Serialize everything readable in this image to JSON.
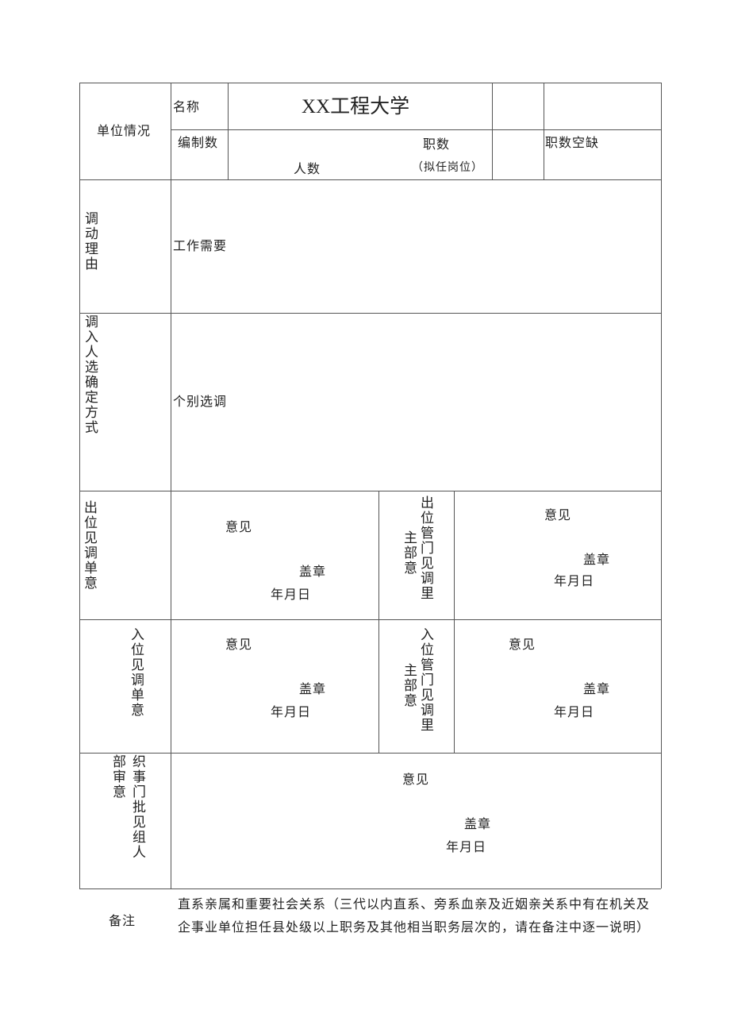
{
  "unit_info": {
    "label": "单位情况",
    "name_label": "名称",
    "name_value": "XX工程大学",
    "quota_label": "编制数",
    "headcount_label": "人数",
    "positions_label": "职数",
    "positions_sub": "（拟任岗位）",
    "vacancy_label": "职数空缺"
  },
  "reason": {
    "label": "调动理由",
    "value": "工作需要"
  },
  "method": {
    "label": "调入人选确定方式",
    "value": "个别选调"
  },
  "out_unit": {
    "label": "出位见调单意",
    "opinion": "意见",
    "seal": "盖章",
    "date": "年月日"
  },
  "out_dept": {
    "label_a": "出位管门见调里",
    "label_b": "主部意",
    "opinion": "意见",
    "seal": "盖章",
    "date": "年月日"
  },
  "in_unit": {
    "label": "入位见调单意",
    "opinion": "意见",
    "seal": "盖章",
    "date": "年月日"
  },
  "in_dept": {
    "label_a": "入位管门见调里",
    "label_b": "主部意",
    "opinion": "意见",
    "seal": "盖章",
    "date": "年月日"
  },
  "org_dept": {
    "label_a": "部审意",
    "label_b": "织事门批见组人",
    "opinion": "意见",
    "seal": "盖章",
    "date": "年月日"
  },
  "remarks": {
    "label": "备注",
    "text": "直系亲属和重要社会关系（三代以内直系、旁系血亲及近姻亲关系中有在机关及企事业单位担任县处级以上职务及其他相当职务层次的，请在备注中逐一说明）"
  }
}
